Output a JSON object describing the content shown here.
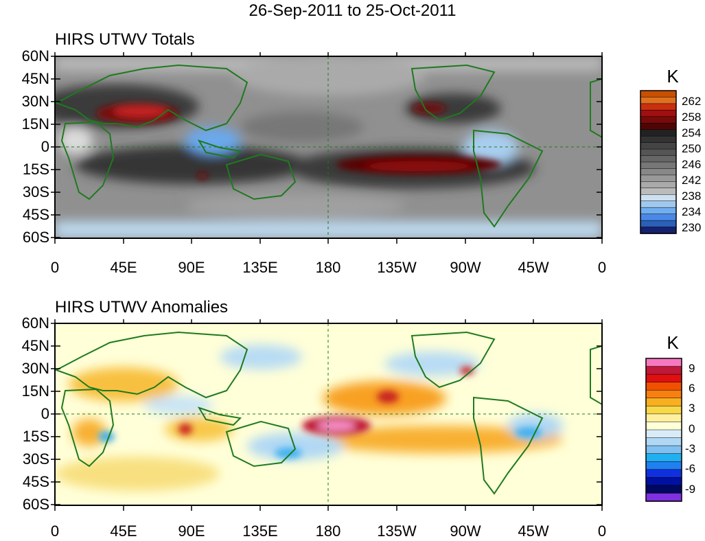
{
  "title": "26-Sep-2011 to 25-Oct-2011",
  "panels": [
    {
      "title": "HIRS UTWV Totals",
      "y_ticks": [
        "60N",
        "45N",
        "30N",
        "15N",
        "0",
        "15S",
        "30S",
        "45S",
        "60S"
      ],
      "x_ticks": [
        "0",
        "45E",
        "90E",
        "135E",
        "180",
        "135W",
        "90W",
        "45W",
        "0"
      ],
      "colorbar": {
        "unit": "K",
        "labels": [
          "262",
          "258",
          "254",
          "250",
          "246",
          "242",
          "238",
          "234",
          "230"
        ],
        "colors": [
          "#c85000",
          "#e07020",
          "#c83010",
          "#a01010",
          "#780a0a",
          "#500505",
          "#222222",
          "#333333",
          "#444444",
          "#555555",
          "#666666",
          "#777777",
          "#888888",
          "#999999",
          "#aaaaaa",
          "#bbbbbb",
          "#cce0f0",
          "#a0c8ec",
          "#70aef0",
          "#4a88e8",
          "#2a60b8",
          "#182070"
        ]
      }
    },
    {
      "title": "HIRS UTWV Anomalies",
      "y_ticks": [
        "60N",
        "45N",
        "30N",
        "15N",
        "0",
        "15S",
        "30S",
        "45S",
        "60S"
      ],
      "x_ticks": [
        "0",
        "45E",
        "90E",
        "135E",
        "180",
        "135W",
        "90W",
        "45W",
        "0"
      ],
      "colorbar": {
        "unit": "K",
        "labels": [
          "9",
          "6",
          "3",
          "0",
          "-3",
          "-6",
          "-9"
        ],
        "colors": [
          "#f878c0",
          "#c01838",
          "#e01010",
          "#f05000",
          "#f88010",
          "#f8b020",
          "#f8d848",
          "#fff0a0",
          "#ffffd8",
          "#d8ecf8",
          "#b0d8f4",
          "#80c0f0",
          "#20b0f0",
          "#2080f0",
          "#1030e0",
          "#0010a0",
          "#000860",
          "#8030e0"
        ]
      }
    }
  ]
}
